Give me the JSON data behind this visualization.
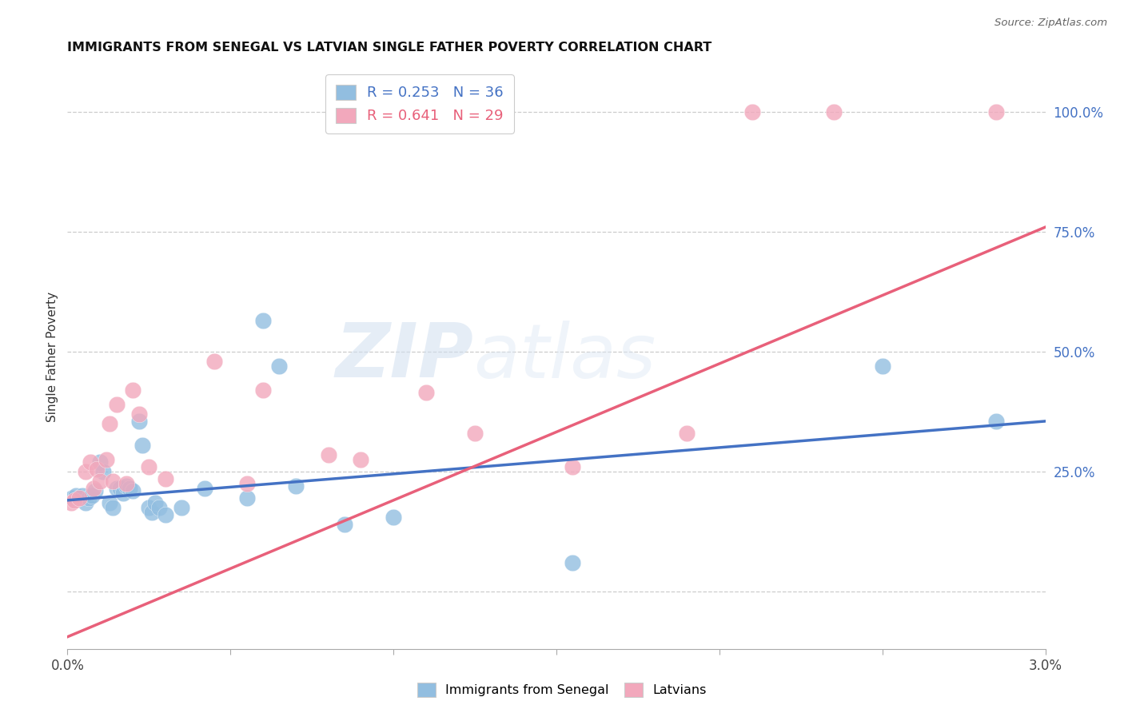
{
  "title": "IMMIGRANTS FROM SENEGAL VS LATVIAN SINGLE FATHER POVERTY CORRELATION CHART",
  "source": "Source: ZipAtlas.com",
  "ylabel": "Single Father Poverty",
  "xlim": [
    0.0,
    0.03
  ],
  "ylim": [
    -0.12,
    1.1
  ],
  "xticks": [
    0.0,
    0.005,
    0.01,
    0.015,
    0.02,
    0.025,
    0.03
  ],
  "xticklabels": [
    "0.0%",
    "",
    "",
    "",
    "",
    "",
    "3.0%"
  ],
  "yticks_right": [
    0.25,
    0.5,
    0.75,
    1.0
  ],
  "yticklabels_right": [
    "25.0%",
    "50.0%",
    "75.0%",
    "100.0%"
  ],
  "blue_color": "#92BEE0",
  "pink_color": "#F2A8BC",
  "blue_line_color": "#4472C4",
  "pink_line_color": "#E8607A",
  "R_blue": 0.253,
  "N_blue": 36,
  "R_pink": 0.641,
  "N_pink": 29,
  "watermark_zip": "ZIP",
  "watermark_atlas": "atlas",
  "blue_scatter": [
    [
      0.00015,
      0.195
    ],
    [
      0.00025,
      0.2
    ],
    [
      0.00035,
      0.195
    ],
    [
      0.00045,
      0.2
    ],
    [
      0.00055,
      0.185
    ],
    [
      0.00065,
      0.195
    ],
    [
      0.00075,
      0.2
    ],
    [
      0.00085,
      0.21
    ],
    [
      0.001,
      0.27
    ],
    [
      0.0011,
      0.25
    ],
    [
      0.0013,
      0.185
    ],
    [
      0.0014,
      0.175
    ],
    [
      0.0015,
      0.215
    ],
    [
      0.0016,
      0.215
    ],
    [
      0.0017,
      0.205
    ],
    [
      0.0018,
      0.22
    ],
    [
      0.0019,
      0.215
    ],
    [
      0.002,
      0.21
    ],
    [
      0.0022,
      0.355
    ],
    [
      0.0023,
      0.305
    ],
    [
      0.0025,
      0.175
    ],
    [
      0.0026,
      0.165
    ],
    [
      0.0027,
      0.185
    ],
    [
      0.0028,
      0.175
    ],
    [
      0.003,
      0.16
    ],
    [
      0.0035,
      0.175
    ],
    [
      0.0042,
      0.215
    ],
    [
      0.0055,
      0.195
    ],
    [
      0.006,
      0.565
    ],
    [
      0.0065,
      0.47
    ],
    [
      0.007,
      0.22
    ],
    [
      0.0085,
      0.14
    ],
    [
      0.01,
      0.155
    ],
    [
      0.0155,
      0.06
    ],
    [
      0.025,
      0.47
    ],
    [
      0.0285,
      0.355
    ]
  ],
  "pink_scatter": [
    [
      0.00012,
      0.185
    ],
    [
      0.00022,
      0.19
    ],
    [
      0.00035,
      0.195
    ],
    [
      0.00055,
      0.25
    ],
    [
      0.0007,
      0.27
    ],
    [
      0.0008,
      0.215
    ],
    [
      0.0009,
      0.255
    ],
    [
      0.001,
      0.23
    ],
    [
      0.0012,
      0.275
    ],
    [
      0.0013,
      0.35
    ],
    [
      0.0014,
      0.23
    ],
    [
      0.0015,
      0.39
    ],
    [
      0.0018,
      0.225
    ],
    [
      0.002,
      0.42
    ],
    [
      0.0022,
      0.37
    ],
    [
      0.0025,
      0.26
    ],
    [
      0.003,
      0.235
    ],
    [
      0.0045,
      0.48
    ],
    [
      0.0055,
      0.225
    ],
    [
      0.006,
      0.42
    ],
    [
      0.008,
      0.285
    ],
    [
      0.009,
      0.275
    ],
    [
      0.011,
      0.415
    ],
    [
      0.0125,
      0.33
    ],
    [
      0.0155,
      0.26
    ],
    [
      0.019,
      0.33
    ],
    [
      0.021,
      1.0
    ],
    [
      0.0235,
      1.0
    ],
    [
      0.0285,
      1.0
    ]
  ],
  "blue_reg": [
    0.0,
    0.03,
    0.19,
    0.355
  ],
  "pink_reg": [
    0.0,
    0.03,
    -0.095,
    0.76
  ]
}
